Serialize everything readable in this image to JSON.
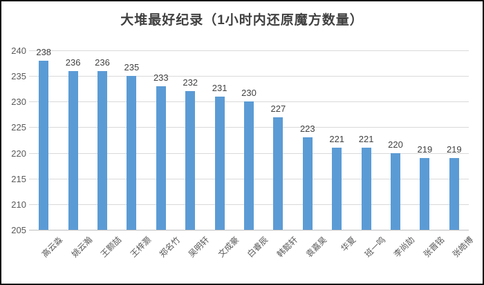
{
  "chart_data": {
    "type": "bar",
    "title": "大堆最好纪录（1小时内还原魔方数量）",
    "categories": [
      "高云淼",
      "姚云瀚",
      "王颢喆",
      "王梓灏",
      "郑名竹",
      "吴明轩",
      "文成豪",
      "白睿辰",
      "韩懿轩",
      "袁嘉昊",
      "华夏",
      "班一鸣",
      "李尚劼",
      "张晋铭",
      "张皓博"
    ],
    "values": [
      238,
      236,
      236,
      235,
      233,
      232,
      231,
      230,
      227,
      223,
      221,
      221,
      220,
      219,
      219
    ],
    "xlabel": "",
    "ylabel": "",
    "ylim": [
      205,
      240
    ],
    "ytick_step": 5,
    "yticks": [
      240,
      235,
      230,
      225,
      220,
      215,
      210,
      205
    ],
    "grid": true,
    "legend": "none",
    "data_labels": true,
    "category_label_rotation_deg": 45,
    "colors": {
      "bar": "#5B9BD5",
      "gridline": "#D9D9D9",
      "axis_line": "#BFBFBF",
      "data_label": "#404040",
      "tick_label": "#595959",
      "title": "#404040",
      "background": "#FFFFFF",
      "frame_border": "#0D0D0D"
    }
  }
}
